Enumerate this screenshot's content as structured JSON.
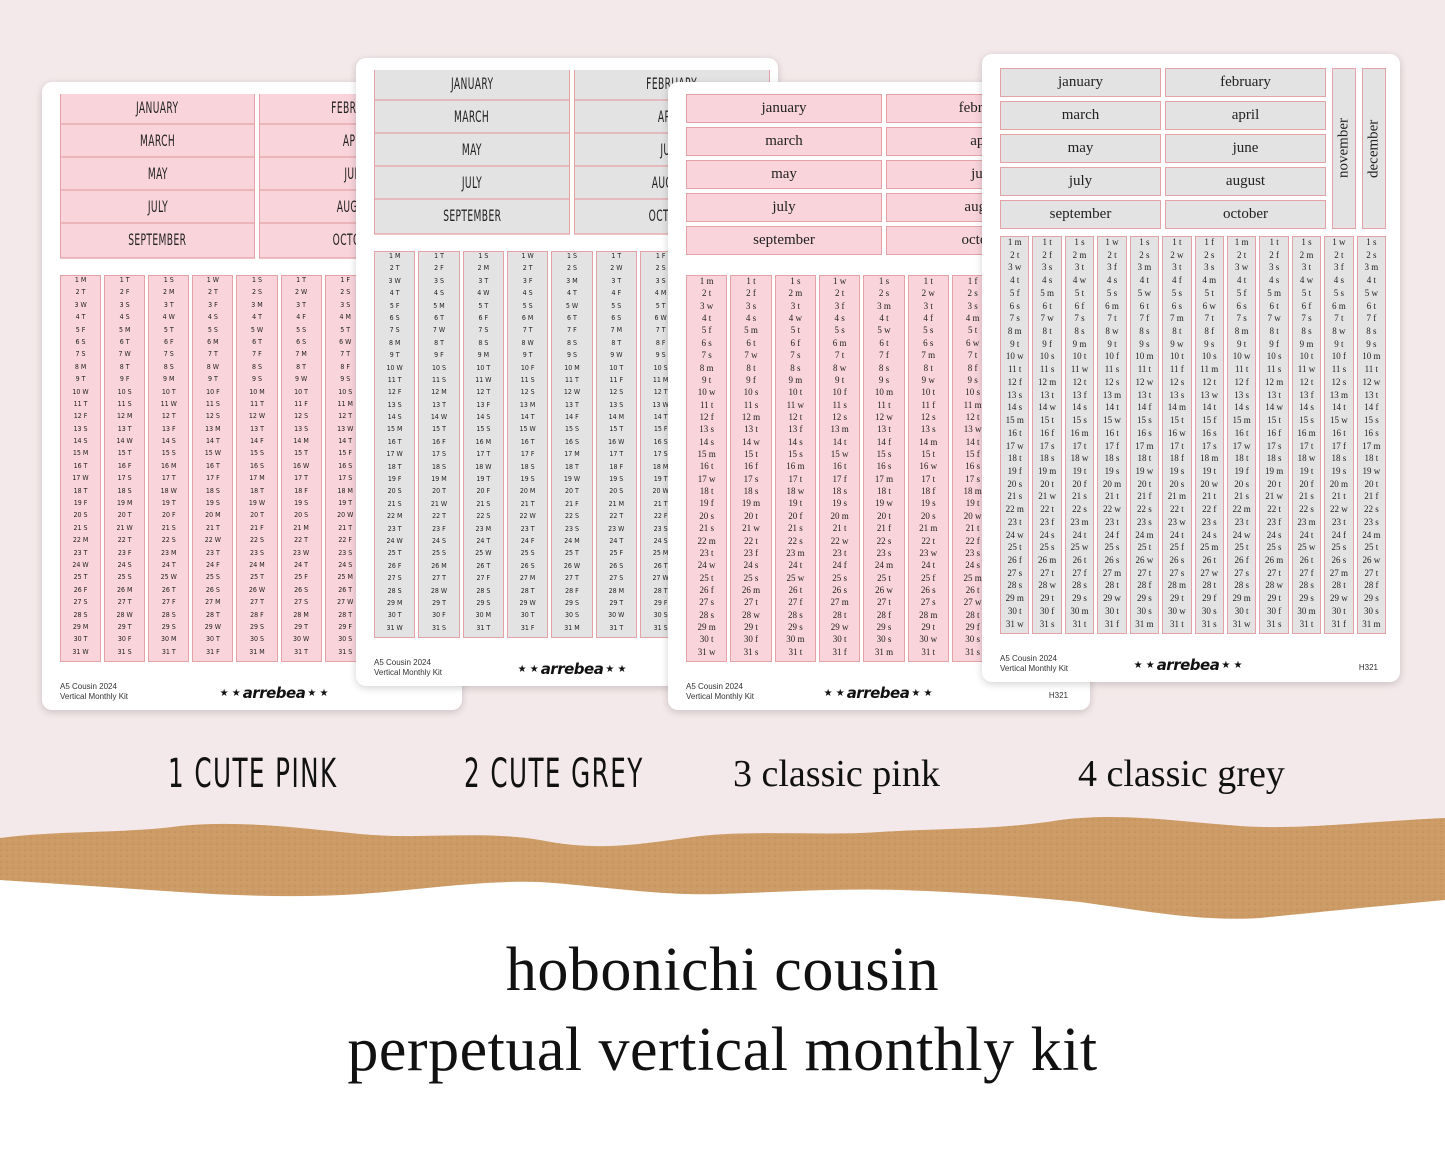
{
  "colors": {
    "pink_fill": "#f9d4db",
    "grey_fill": "#e3e3e4",
    "border": "#e5a2a6",
    "background": "#f4e9ea",
    "kraft": "#cc9b66"
  },
  "cute_months": [
    "JANUARY",
    "FEBRUARY",
    "MARCH",
    "APRIL",
    "MAY",
    "JUNE",
    "JULY",
    "AUGUST",
    "SEPTEMBER",
    "OCTOBER"
  ],
  "classic_months": [
    "january",
    "february",
    "march",
    "april",
    "may",
    "june",
    "july",
    "august",
    "september",
    "october"
  ],
  "side_months": [
    "november",
    "december"
  ],
  "sheet_footer": {
    "line1": "A5 Cousin 2024",
    "line2": "Vertical Monthly  Kit",
    "code": "H321",
    "brand": "arrebea"
  },
  "variants": [
    "1 CUTE PINK",
    "2 CUTE GREY",
    "3 classic pink",
    "4 classic grey"
  ],
  "title": {
    "line1": "hobonichi cousin",
    "line2": "perpetual vertical monthly kit"
  }
}
